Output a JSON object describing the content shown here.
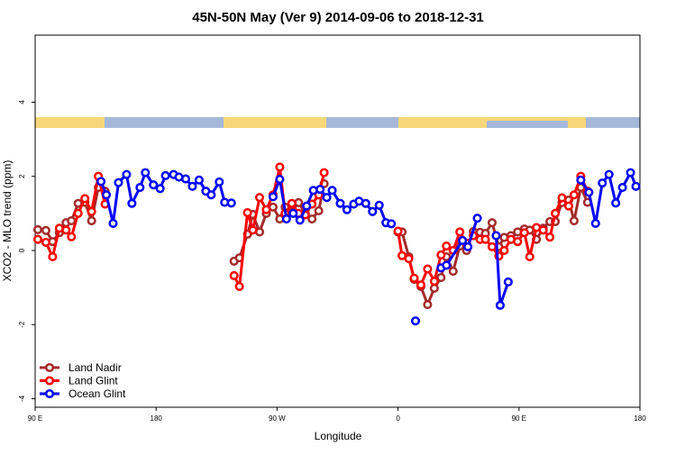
{
  "chart_data": {
    "type": "line",
    "title": "45N-50N May (Ver 9)   2014-09-06 to 2018-12-31",
    "x_label": "Longitude",
    "y_label": "XCO2 - MLO trend (ppm)",
    "xlim": [
      90,
      540
    ],
    "xticks": [
      {
        "value": 90,
        "label": "90 E"
      },
      180,
      {
        "value": 270,
        "label": "90 W"
      },
      {
        "value": 360,
        "label": "0"
      },
      {
        "value": 450,
        "label": "90 E"
      },
      {
        "value": 540,
        "label": "180"
      }
    ],
    "ylim": [
      -4.23,
      5.81
    ],
    "yticks": [
      -4,
      -2,
      0,
      2,
      4
    ],
    "grid": false,
    "legend": "bottom-left",
    "series": [
      {
        "name": "Land Nadir",
        "color": "#a52a2a",
        "x": [
          92,
          98,
          103,
          108,
          113,
          117,
          122,
          127,
          132,
          137,
          142,
          null,
          238,
          242,
          248,
          252,
          257,
          262,
          267,
          272,
          276,
          281,
          286,
          291,
          296,
          301,
          305,
          null,
          360,
          363,
          368,
          372,
          377,
          382,
          387,
          392,
          396,
          401,
          406,
          411,
          416,
          421,
          425,
          430,
          435,
          439,
          444,
          449,
          454,
          458,
          463,
          468,
          473,
          477,
          482,
          487,
          491,
          496,
          501
        ],
        "values": [
          0.56,
          0.54,
          0.24,
          0.48,
          0.75,
          0.8,
          1.27,
          1.3,
          0.8,
          1.7,
          1.6,
          null,
          -0.29,
          -0.2,
          0.44,
          0.97,
          0.5,
          1.0,
          1.17,
          0.85,
          1.17,
          1.05,
          1.29,
          1.0,
          0.85,
          1.07,
          1.8,
          null,
          0.5,
          0.5,
          -0.17,
          -0.78,
          -0.97,
          -1.46,
          -1.02,
          -0.73,
          -0.17,
          -0.56,
          0.12,
          0.0,
          0.51,
          0.49,
          0.46,
          0.75,
          0.1,
          0.35,
          0.4,
          0.5,
          0.58,
          0.55,
          0.3,
          0.6,
          0.78,
          0.78,
          1.29,
          1.36,
          0.8,
          1.7,
          1.3
        ]
      },
      {
        "name": "Land Glint",
        "color": "#ff0000",
        "x": [
          92,
          98,
          103,
          108,
          113,
          117,
          122,
          127,
          132,
          137,
          142,
          null,
          238,
          242,
          248,
          252,
          257,
          262,
          267,
          272,
          276,
          281,
          286,
          291,
          296,
          301,
          305,
          null,
          360,
          363,
          368,
          372,
          377,
          382,
          387,
          392,
          396,
          401,
          406,
          411,
          416,
          421,
          425,
          430,
          435,
          439,
          444,
          449,
          454,
          458,
          463,
          468,
          473,
          477,
          482,
          487,
          491,
          496,
          501
        ],
        "values": [
          0.3,
          0.22,
          -0.17,
          0.6,
          0.55,
          0.37,
          1.0,
          1.4,
          1.05,
          2.0,
          1.25,
          null,
          -0.68,
          -0.97,
          1.02,
          0.55,
          1.43,
          1.1,
          1.5,
          2.25,
          1.0,
          1.27,
          1.0,
          0.96,
          1.25,
          1.5,
          2.1,
          null,
          0.52,
          -0.14,
          -0.22,
          -0.75,
          -0.93,
          -0.5,
          -0.83,
          -0.12,
          0.12,
          0.0,
          0.5,
          0.2,
          0.4,
          0.3,
          0.3,
          0.1,
          -0.15,
          0.0,
          0.3,
          0.24,
          0.48,
          -0.17,
          0.62,
          0.55,
          0.36,
          1.0,
          1.42,
          1.2,
          1.5,
          2.0,
          1.6
        ]
      },
      {
        "name": "Ocean Glint",
        "color": "#0000ff",
        "x": [
          139,
          143,
          148,
          152,
          158,
          162,
          168,
          172,
          178,
          183,
          187,
          193,
          197,
          202,
          207,
          212,
          217,
          221,
          227,
          231,
          236,
          null,
          267,
          272,
          277,
          282,
          287,
          292,
          297,
          302,
          307,
          311,
          317,
          322,
          327,
          331,
          336,
          341,
          346,
          351,
          355,
          null,
          373,
          null,
          392,
          396,
          408,
          412,
          419,
          null,
          433,
          436,
          442,
          null,
          496,
          502,
          507,
          512,
          517,
          522,
          527,
          533,
          537
        ],
        "values": [
          1.86,
          1.5,
          0.73,
          1.83,
          2.05,
          1.27,
          1.7,
          2.1,
          1.77,
          1.67,
          2.02,
          2.05,
          1.98,
          1.93,
          1.73,
          1.9,
          1.6,
          1.5,
          1.85,
          1.3,
          1.28,
          null,
          1.45,
          1.92,
          0.85,
          1.0,
          0.82,
          1.2,
          1.62,
          1.65,
          1.43,
          1.62,
          1.27,
          1.1,
          1.25,
          1.33,
          1.27,
          1.05,
          1.22,
          0.75,
          0.72,
          null,
          -1.9,
          null,
          -0.47,
          -0.4,
          0.27,
          0.1,
          0.87,
          null,
          0.4,
          -1.48,
          -0.85,
          null,
          1.9,
          1.57,
          0.73,
          1.82,
          2.05,
          1.28,
          1.7,
          2.1,
          1.73
        ]
      }
    ]
  }
}
